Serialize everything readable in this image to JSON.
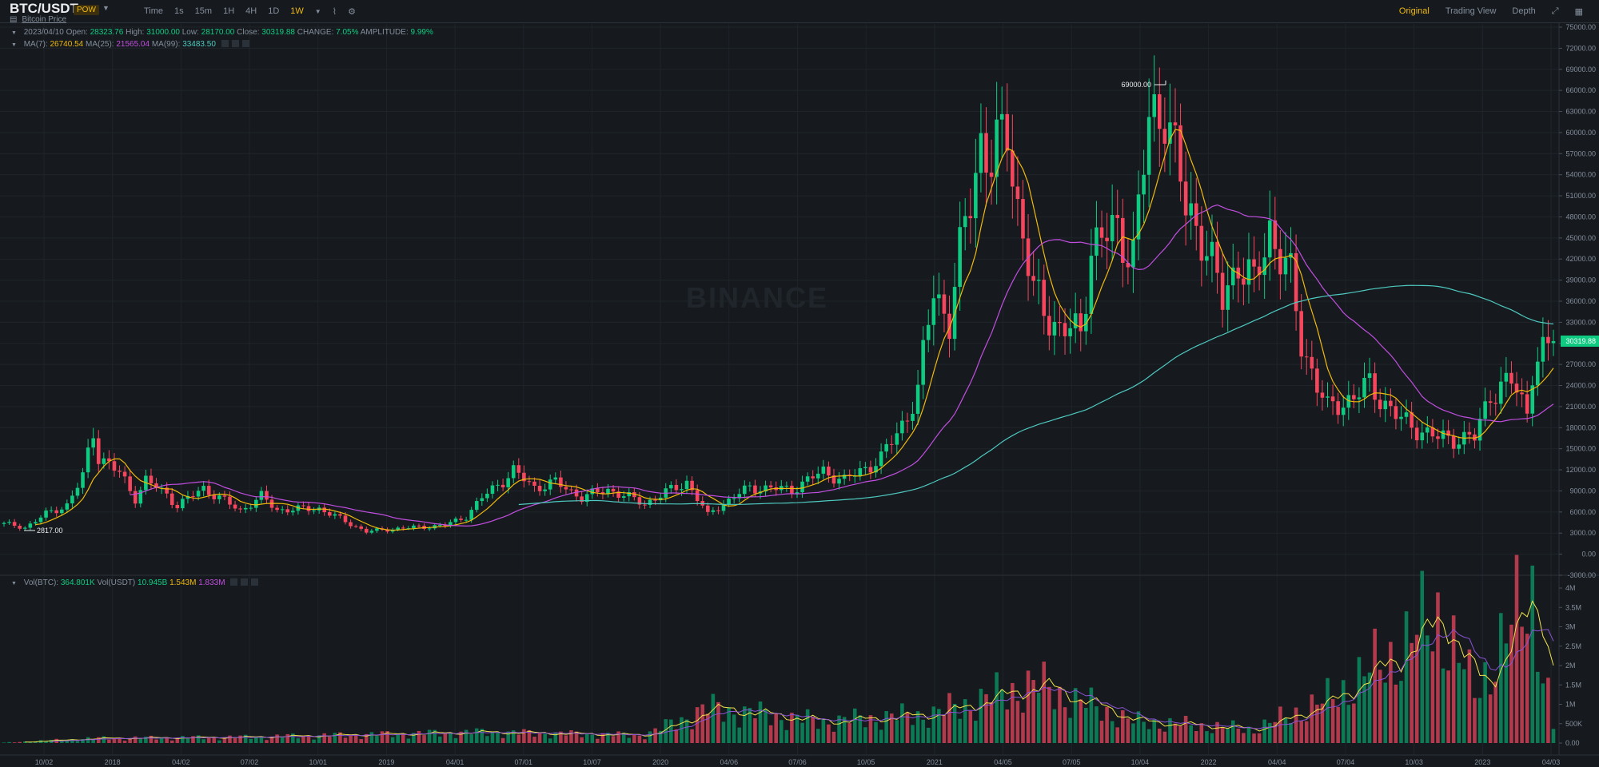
{
  "header": {
    "symbol": "BTC/USDT",
    "badge": "POW",
    "subtitle": "Bitcoin Price",
    "intervals": [
      "Time",
      "1s",
      "15m",
      "1H",
      "4H",
      "1D",
      "1W"
    ],
    "active_interval": "1W",
    "views": [
      "Original",
      "Trading View",
      "Depth"
    ],
    "active_view": "Original",
    "watermark": "BINANCE"
  },
  "ohlc": {
    "date": "2023/04/10",
    "open_label": "Open:",
    "open": "28323.76",
    "high_label": "High:",
    "high": "31000.00",
    "low_label": "Low:",
    "low": "28170.00",
    "close_label": "Close:",
    "close": "30319.88",
    "change_label": "CHANGE:",
    "change": "7.05%",
    "amplitude_label": "AMPLITUDE:",
    "amplitude": "9.99%"
  },
  "ma_legend": {
    "ma7_label": "MA(7):",
    "ma7": "26740.54",
    "ma25_label": "MA(25):",
    "ma25": "21565.04",
    "ma99_label": "MA(99):",
    "ma99": "33483.50"
  },
  "vol_legend": {
    "vol_btc_label": "Vol(BTC):",
    "vol_btc": "364.801K",
    "vol_usdt_label": "Vol(USDT)",
    "vol_usdt": "10.945B",
    "v1": "1.543M",
    "v2": "1.833M"
  },
  "colors": {
    "up": "#0ecb81",
    "down": "#f6465d",
    "ma7": "#f0b90b",
    "ma25": "#c14ee0",
    "ma99": "#4ec9c0",
    "background": "#161a1e",
    "grid": "#1f242b"
  },
  "chart_data": [
    {
      "type": "candlestick",
      "title": "BTC/USDT 1W",
      "y_ticks": [
        "75000.00",
        "72000.00",
        "69000.00",
        "66000.00",
        "63000.00",
        "60000.00",
        "57000.00",
        "54000.00",
        "51000.00",
        "48000.00",
        "45000.00",
        "42000.00",
        "39000.00",
        "36000.00",
        "33000.00",
        "30000.00",
        "27000.00",
        "24000.00",
        "21000.00",
        "18000.00",
        "15000.00",
        "12000.00",
        "9000.00",
        "6000.00",
        "3000.00",
        "0.00",
        "-3000.00"
      ],
      "ylim": [
        -3000,
        75000
      ],
      "x_ticks": [
        "10/02",
        "2018",
        "04/02",
        "07/02",
        "10/01",
        "2019",
        "04/01",
        "07/01",
        "10/07",
        "2020",
        "04/06",
        "07/06",
        "10/05",
        "2021",
        "04/05",
        "07/05",
        "10/04",
        "2022",
        "04/04",
        "07/04",
        "10/03",
        "2023",
        "04/03"
      ],
      "x_range": [
        "2017-08-14",
        "2023-04-10"
      ],
      "annotations": {
        "high_label": "69000.00",
        "low_label": "2817.00"
      },
      "last_price": "30319.88",
      "weekly_close_anchors": [
        [
          "2017-08-14",
          4300
        ],
        [
          "2017-09-11",
          3800
        ],
        [
          "2017-10-09",
          5700
        ],
        [
          "2017-11-06",
          7000
        ],
        [
          "2017-11-27",
          11000
        ],
        [
          "2017-12-11",
          17500
        ],
        [
          "2017-12-18",
          14000
        ],
        [
          "2018-01-15",
          11500
        ],
        [
          "2018-02-05",
          8000
        ],
        [
          "2018-02-19",
          10500
        ],
        [
          "2018-03-19",
          8500
        ],
        [
          "2018-04-02",
          6900
        ],
        [
          "2018-05-07",
          9400
        ],
        [
          "2018-06-25",
          6200
        ],
        [
          "2018-07-23",
          8200
        ],
        [
          "2018-08-13",
          6300
        ],
        [
          "2018-10-08",
          6500
        ],
        [
          "2018-11-19",
          4300
        ],
        [
          "2018-12-10",
          3200
        ],
        [
          "2019-01-14",
          3600
        ],
        [
          "2019-03-25",
          4100
        ],
        [
          "2019-04-22",
          5400
        ],
        [
          "2019-05-13",
          8000
        ],
        [
          "2019-06-24",
          11800
        ],
        [
          "2019-07-22",
          9500
        ],
        [
          "2019-08-19",
          10200
        ],
        [
          "2019-09-23",
          8100
        ],
        [
          "2019-10-28",
          9200
        ],
        [
          "2019-12-16",
          7200
        ],
        [
          "2020-02-10",
          10300
        ],
        [
          "2020-03-09",
          5500
        ],
        [
          "2020-03-16",
          6300
        ],
        [
          "2020-05-04",
          9500
        ],
        [
          "2020-06-29",
          9200
        ],
        [
          "2020-08-10",
          11800
        ],
        [
          "2020-09-07",
          10500
        ],
        [
          "2020-10-26",
          13600
        ],
        [
          "2020-11-23",
          18500
        ],
        [
          "2020-12-14",
          23000
        ],
        [
          "2021-01-04",
          38000
        ],
        [
          "2021-01-25",
          33000
        ],
        [
          "2021-02-15",
          47000
        ],
        [
          "2021-03-08",
          59000
        ],
        [
          "2021-03-22",
          55000
        ],
        [
          "2021-04-12",
          61000
        ],
        [
          "2021-04-26",
          49500
        ],
        [
          "2021-05-17",
          37000
        ],
        [
          "2021-06-21",
          32000
        ],
        [
          "2021-07-19",
          31500
        ],
        [
          "2021-08-02",
          44000
        ],
        [
          "2021-09-06",
          46000
        ],
        [
          "2021-09-27",
          43000
        ],
        [
          "2021-10-18",
          61000
        ],
        [
          "2021-11-08",
          64500
        ],
        [
          "2021-12-06",
          49000
        ],
        [
          "2021-12-27",
          46000
        ],
        [
          "2022-01-24",
          36000
        ],
        [
          "2022-02-14",
          42000
        ],
        [
          "2022-03-07",
          38000
        ],
        [
          "2022-03-28",
          46500
        ],
        [
          "2022-04-25",
          39000
        ],
        [
          "2022-05-09",
          30000
        ],
        [
          "2022-06-13",
          20500
        ],
        [
          "2022-07-18",
          22500
        ],
        [
          "2022-08-08",
          24000
        ],
        [
          "2022-09-19",
          19000
        ],
        [
          "2022-11-07",
          16500
        ],
        [
          "2022-12-26",
          16500
        ],
        [
          "2023-01-16",
          23000
        ],
        [
          "2023-02-13",
          24500
        ],
        [
          "2023-03-06",
          20500
        ],
        [
          "2023-03-13",
          26500
        ],
        [
          "2023-04-10",
          30319.88
        ]
      ],
      "series": [
        {
          "name": "MA(7)",
          "last": "26740.54"
        },
        {
          "name": "MA(25)",
          "last": "21565.04"
        },
        {
          "name": "MA(99)",
          "last": "33483.50"
        }
      ]
    },
    {
      "type": "bar",
      "title": "Volume",
      "y_ticks": [
        "4M",
        "3.5M",
        "3M",
        "2.5M",
        "2M",
        "1.5M",
        "1M",
        "500K",
        "0.00"
      ],
      "ylim": [
        0,
        4000000
      ],
      "volume_anchors_millions": [
        [
          "2017-08-14",
          0.01
        ],
        [
          "2017-12-11",
          0.12
        ],
        [
          "2018-06-25",
          0.15
        ],
        [
          "2019-05-13",
          0.28
        ],
        [
          "2019-12-16",
          0.2
        ],
        [
          "2020-03-09",
          0.9
        ],
        [
          "2020-08-10",
          0.55
        ],
        [
          "2021-01-04",
          0.75
        ],
        [
          "2021-05-17",
          1.5
        ],
        [
          "2021-09-27",
          0.55
        ],
        [
          "2022-03-07",
          0.35
        ],
        [
          "2022-06-13",
          1.1
        ],
        [
          "2022-09-19",
          2.4
        ],
        [
          "2022-11-07",
          3.3
        ],
        [
          "2022-12-26",
          1.3
        ],
        [
          "2023-03-13",
          3.9
        ],
        [
          "2023-04-10",
          0.36
        ]
      ]
    }
  ]
}
